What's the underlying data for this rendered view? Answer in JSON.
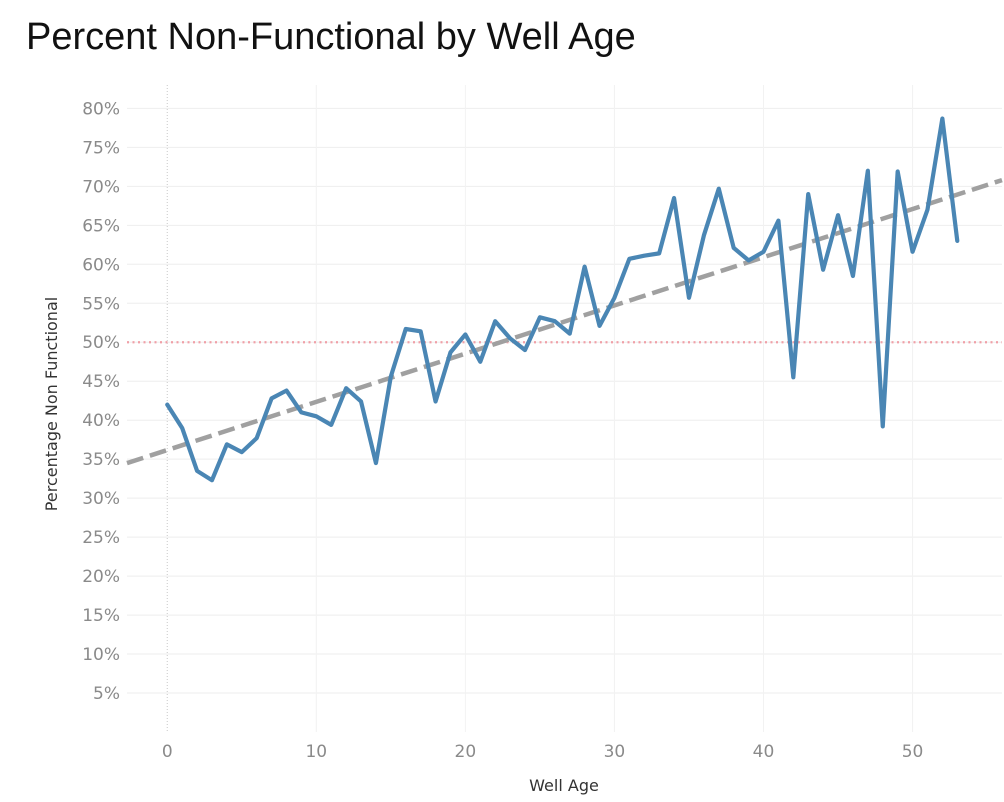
{
  "chart_data": {
    "type": "line",
    "title": "Percent Non-Functional by Well Age",
    "xlabel": "Well Age",
    "ylabel": "Percentage Non Functional",
    "xlim": [
      -2.7,
      56
    ],
    "ylim": [
      0,
      0.83
    ],
    "x_ticks": [
      0,
      10,
      20,
      30,
      40,
      50
    ],
    "x_tick_labels": [
      "0",
      "10",
      "20",
      "30",
      "40",
      "50"
    ],
    "y_ticks": [
      0.05,
      0.1,
      0.15,
      0.2,
      0.25,
      0.3,
      0.35,
      0.4,
      0.45,
      0.5,
      0.55,
      0.6,
      0.65,
      0.7,
      0.75,
      0.8
    ],
    "y_tick_labels": [
      "5%",
      "10%",
      "15%",
      "20%",
      "25%",
      "30%",
      "35%",
      "40%",
      "45%",
      "50%",
      "55%",
      "60%",
      "65%",
      "70%",
      "75%",
      "80%"
    ],
    "grid": true,
    "series": [
      {
        "x": [
          0,
          1,
          2,
          3,
          4,
          5,
          6,
          7,
          8,
          9,
          10,
          11,
          12,
          13,
          14,
          15,
          16,
          17,
          18,
          19,
          20,
          21,
          22,
          23,
          24,
          25,
          26,
          27,
          28,
          29,
          30,
          31,
          32,
          33,
          34,
          35,
          36,
          37,
          38,
          39,
          40,
          41,
          42,
          43,
          44,
          45,
          46,
          47,
          48,
          49,
          50,
          51,
          52,
          53
        ],
        "y": [
          0.42,
          0.39,
          0.335,
          0.323,
          0.369,
          0.359,
          0.377,
          0.428,
          0.438,
          0.41,
          0.405,
          0.394,
          0.441,
          0.424,
          0.345,
          0.456,
          0.517,
          0.514,
          0.424,
          0.487,
          0.51,
          0.475,
          0.527,
          0.505,
          0.49,
          0.532,
          0.527,
          0.511,
          0.597,
          0.521,
          0.557,
          0.607,
          0.611,
          0.614,
          0.685,
          0.557,
          0.637,
          0.697,
          0.621,
          0.605,
          0.616,
          0.656,
          0.455,
          0.69,
          0.593,
          0.663,
          0.585,
          0.72,
          0.392,
          0.719,
          0.616,
          0.67,
          0.787,
          0.63
        ],
        "color": "#4a86b4"
      }
    ],
    "trend_line": {
      "from": [
        -2.7,
        0.345
      ],
      "to": [
        56,
        0.708
      ],
      "color": "#a0a0a0",
      "style": "dashed"
    },
    "reference_line": {
      "y": 0.5,
      "color": "#f0a0a8",
      "style": "dotted"
    }
  }
}
